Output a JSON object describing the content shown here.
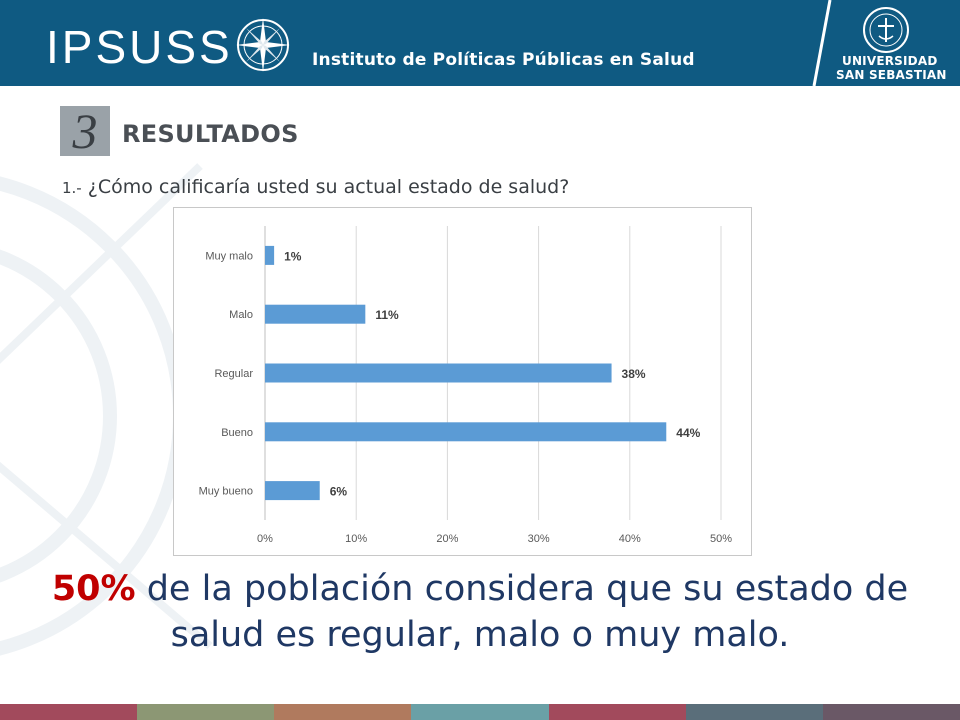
{
  "header": {
    "logo": "IPSUSS",
    "subtitle": "Instituto de Políticas Públicas en Salud",
    "university_line1": "UNIVERSIDAD",
    "university_line2": "SAN SEBASTIAN",
    "background_color": "#0f5a82"
  },
  "section": {
    "number": "3",
    "title": "RESULTADOS"
  },
  "question": {
    "number": "1.-",
    "text": "¿Cómo calificaría usted su actual estado de salud?"
  },
  "chart_data": {
    "type": "bar",
    "orientation": "horizontal",
    "categories": [
      "Muy malo",
      "Malo",
      "Regular",
      "Bueno",
      "Muy bueno"
    ],
    "values": [
      1,
      11,
      38,
      44,
      6
    ],
    "data_labels": [
      "1%",
      "11%",
      "38%",
      "44%",
      "6%"
    ],
    "xticks": [
      "0%",
      "10%",
      "20%",
      "30%",
      "40%",
      "50%"
    ],
    "xlim": [
      0,
      50
    ],
    "grid": true,
    "bar_color": "#5b9bd5",
    "title": "",
    "xlabel": "",
    "ylabel": ""
  },
  "conclusion": {
    "highlight": "50%",
    "text_line1": " de la población considera que su estado de",
    "text_line2": "salud es regular, malo o muy malo.",
    "highlight_color": "#c00000"
  },
  "strip_colors": [
    "#a24a5c",
    "#8c9774",
    "#b07a5e",
    "#6aa0a6",
    "#a24a5c",
    "#5a6e7a",
    "#6a5866"
  ]
}
